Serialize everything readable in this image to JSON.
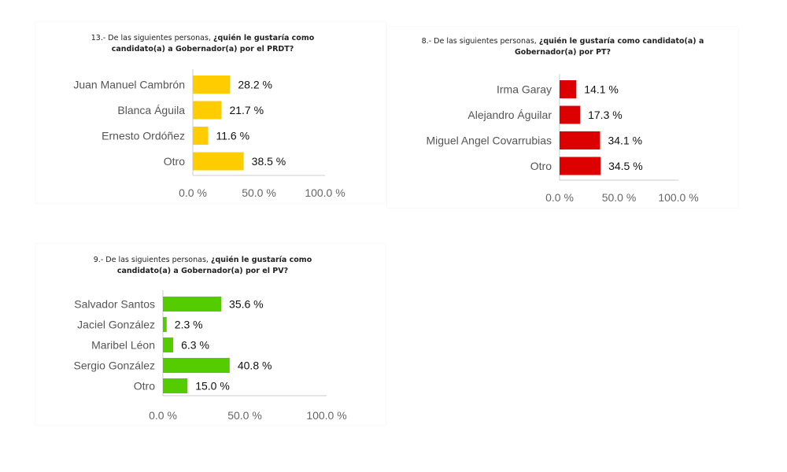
{
  "chart_data": [
    {
      "type": "bar",
      "orientation": "horizontal",
      "title_prefix": "13.- De las siguientes personas, ",
      "title_bold": "¿quién le gustaría como candidato(a) a Gobernador(a) por el PRDT?",
      "categories": [
        "Juan Manuel Cambrón",
        "Blanca Águila",
        "Ernesto Ordóñez",
        "Otro"
      ],
      "values": [
        28.2,
        21.7,
        11.6,
        38.5
      ],
      "value_labels": [
        "28.2 %",
        "21.7 %",
        "11.6 %",
        "38.5 %"
      ],
      "xlim": [
        0,
        100
      ],
      "xticks": [
        0,
        50,
        100
      ],
      "xtick_labels": [
        "0.0 %",
        "50.0 %",
        "100.0 %"
      ],
      "color": "#FFCC00",
      "grid": false
    },
    {
      "type": "bar",
      "orientation": "horizontal",
      "title_prefix": "8.- De las siguientes personas, ",
      "title_bold": "¿quién le gustaría como candidato(a) a Gobernador(a) por PT?",
      "categories": [
        "Irma Garay",
        "Alejandro Águilar",
        "Miguel Angel Covarrubias",
        "Otro"
      ],
      "values": [
        14.1,
        17.3,
        34.1,
        34.5
      ],
      "value_labels": [
        "14.1 %",
        "17.3 %",
        "34.1 %",
        "34.5 %"
      ],
      "xlim": [
        0,
        100
      ],
      "xticks": [
        0,
        50,
        100
      ],
      "xtick_labels": [
        "0.0 %",
        "50.0 %",
        "100.0 %"
      ],
      "color": "#DD0000",
      "grid": false
    },
    {
      "type": "bar",
      "orientation": "horizontal",
      "title_prefix": "9.- De las siguientes personas, ",
      "title_bold": "¿quién le gustaría como candidato(a) a Gobernador(a) por el PV?",
      "categories": [
        "Salvador Santos",
        "Jaciel González",
        "Maribel Léon",
        "Sergio González",
        "Otro"
      ],
      "values": [
        35.6,
        2.3,
        6.3,
        40.8,
        15.0
      ],
      "value_labels": [
        "35.6 %",
        "2.3 %",
        "6.3 %",
        "40.8 %",
        "15.0 %"
      ],
      "xlim": [
        0,
        100
      ],
      "xticks": [
        0,
        50,
        100
      ],
      "xtick_labels": [
        "0.0 %",
        "50.0 %",
        "100.0 %"
      ],
      "color": "#55CC00",
      "grid": false
    }
  ]
}
